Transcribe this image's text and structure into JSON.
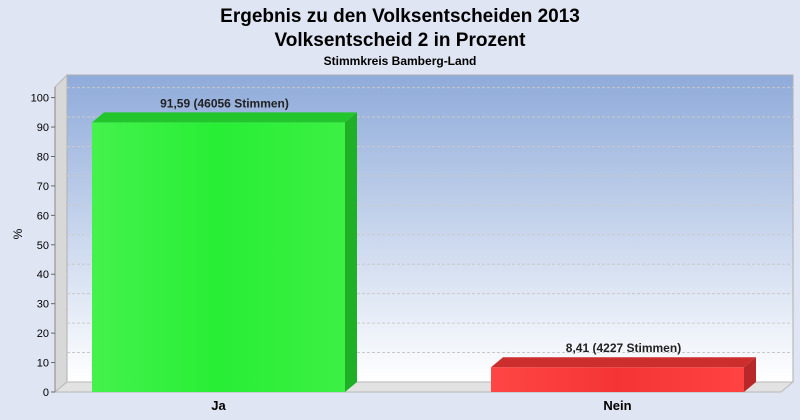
{
  "chart_data": {
    "type": "bar",
    "title": "Ergebnis zu den Volksentscheiden 2013",
    "title2": "Volksentscheid 2 in Prozent",
    "subtitle": "Stimmkreis Bamberg-Land",
    "ylabel": "%",
    "xlabel": "",
    "ylim": [
      0,
      100
    ],
    "yticks": [
      0,
      10,
      20,
      30,
      40,
      50,
      60,
      70,
      80,
      90,
      100
    ],
    "categories": [
      "Ja",
      "Nein"
    ],
    "values": [
      91.59,
      8.41
    ],
    "data_labels": [
      "91,59 (46056 Stimmen)",
      "8,41 (4227 Stimmen)"
    ],
    "colors": [
      "#2ef03a",
      "#f03a3a"
    ],
    "legend": "none",
    "grid": true
  }
}
